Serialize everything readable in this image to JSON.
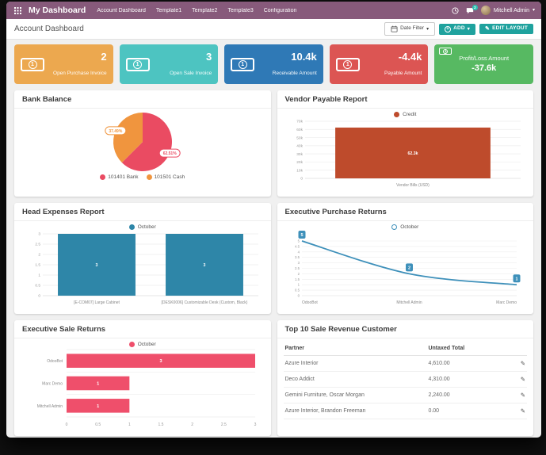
{
  "topbar": {
    "brand": "My Dashboard",
    "menu": [
      "Account Dashboard",
      "Template1",
      "Template2",
      "Template3",
      "Configuration"
    ],
    "user": "Mitchell Admin",
    "message_badge": "2",
    "color": "#875a7b"
  },
  "controlbar": {
    "title": "Account Dashboard",
    "date_filter_label": "Date Filter",
    "add_label": "ADD",
    "edit_layout_label": "EDIT LAYOUT",
    "accent_color": "#1fa29e"
  },
  "kpis": [
    {
      "value": "2",
      "label": "Open Purchase Invoice",
      "color": "#eca84f"
    },
    {
      "value": "3",
      "label": "Open Sale Invoice",
      "color": "#4dc4c1"
    },
    {
      "value": "10.4k",
      "label": "Receivable Amount",
      "color": "#2f79b6"
    },
    {
      "value": "-4.4k",
      "label": "Payable Amount",
      "color": "#dc5553"
    },
    {
      "value": "-37.6k",
      "label": "Profit/Loss Amount",
      "color": "#57b962"
    }
  ],
  "chart_data": [
    {
      "type": "pie",
      "title": "Bank Balance",
      "labels": [
        "101401 Bank",
        "101501 Cash"
      ],
      "values": [
        62.51,
        37.49
      ],
      "value_labels": [
        "62.51%",
        "37.49%"
      ],
      "colors": [
        "#ea4b62",
        "#f0953e"
      ],
      "legend_position": "bottom"
    },
    {
      "type": "bar",
      "title": "Vendor Payable Report",
      "categories": [
        "Vendor Bills (USD)"
      ],
      "series": [
        {
          "name": "Credit",
          "values": [
            62300
          ],
          "value_labels": [
            "62.3k"
          ]
        }
      ],
      "color": "#be4b2c",
      "ylim": [
        0,
        70000
      ],
      "yticks": [
        "0",
        "10k",
        "20k",
        "30k",
        "40k",
        "50k",
        "60k",
        "70k"
      ],
      "legend_position": "top"
    },
    {
      "type": "bar",
      "title": "Head Expenses Report",
      "categories": [
        "[E-COM07] Large Cabinet",
        "[DESK0006] Customizable Desk (Custom, Black)"
      ],
      "series": [
        {
          "name": "October",
          "values": [
            3,
            3
          ],
          "value_labels": [
            "3",
            "3"
          ]
        }
      ],
      "color": "#2e86a8",
      "ylim": [
        0,
        3
      ],
      "yticks": [
        "0",
        "0.5",
        "1",
        "1.5",
        "2",
        "2.5",
        "3"
      ],
      "legend_position": "top"
    },
    {
      "type": "line",
      "title": "Executive Purchase Returns",
      "categories": [
        "OdooBot",
        "Mitchell Admin",
        "Marc Demo"
      ],
      "series": [
        {
          "name": "October",
          "values": [
            5,
            2,
            1
          ],
          "value_labels": [
            "5",
            "2",
            "1"
          ]
        }
      ],
      "color": "#3e90ba",
      "ylim": [
        0,
        5
      ],
      "yticks": [
        "0",
        "0.5",
        "1",
        "1.5",
        "2",
        "2.5",
        "3",
        "3.5",
        "4",
        "4.5",
        "5"
      ],
      "legend_position": "top"
    },
    {
      "type": "bar_h",
      "title": "Executive Sale Returns",
      "categories": [
        "OdooBot",
        "Marc Demo",
        "Mitchell Admin"
      ],
      "series": [
        {
          "name": "October",
          "values": [
            3,
            1,
            1
          ],
          "value_labels": [
            "3",
            "1",
            "1"
          ]
        }
      ],
      "color": "#ef4f6b",
      "xlim": [
        0,
        3
      ],
      "xticks": [
        "0",
        "0.5",
        "1",
        "1.5",
        "2",
        "2.5",
        "3"
      ],
      "legend_position": "top"
    }
  ],
  "table": {
    "title": "Top 10 Sale Revenue Customer",
    "columns": [
      "Partner",
      "Untaxed Total"
    ],
    "rows": [
      {
        "partner": "Azure Interior",
        "untaxed_total": "4,610.00"
      },
      {
        "partner": "Deco Addict",
        "untaxed_total": "4,310.00"
      },
      {
        "partner": "Gemini Furniture, Oscar Morgan",
        "untaxed_total": "2,240.00"
      },
      {
        "partner": "Azure Interior, Brandon Freeman",
        "untaxed_total": "0.00"
      }
    ]
  }
}
